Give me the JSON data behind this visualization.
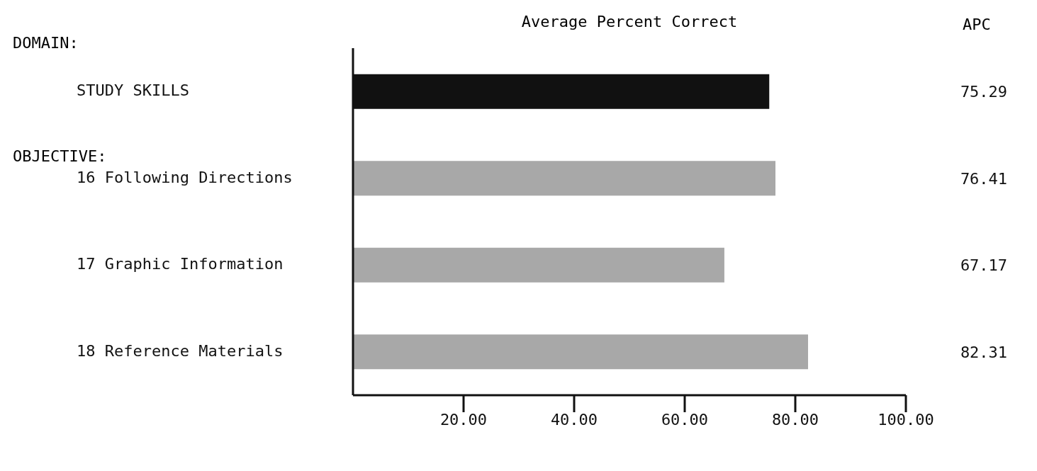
{
  "chart_data": {
    "type": "bar",
    "orientation": "horizontal",
    "title": "Average Percent Correct",
    "categories": [
      "STUDY SKILLS",
      "16 Following Directions",
      "17 Graphic Information",
      "18 Reference Materials"
    ],
    "values": [
      75.29,
      76.41,
      67.17,
      82.31
    ],
    "colors": [
      "#111111",
      "#a8a8a8",
      "#a8a8a8",
      "#a8a8a8"
    ],
    "xlim": [
      0,
      100
    ],
    "xticks": [
      {
        "value": 20,
        "label": "20.00"
      },
      {
        "value": 40,
        "label": "40.00"
      },
      {
        "value": 60,
        "label": "60.00"
      },
      {
        "value": 80,
        "label": "80.00"
      },
      {
        "value": 100,
        "label": "100.00"
      }
    ],
    "data_labels": true,
    "grid": false,
    "legend": false,
    "annotations": [
      "DOMAIN:",
      "OBJECTIVE:",
      "APC"
    ]
  }
}
